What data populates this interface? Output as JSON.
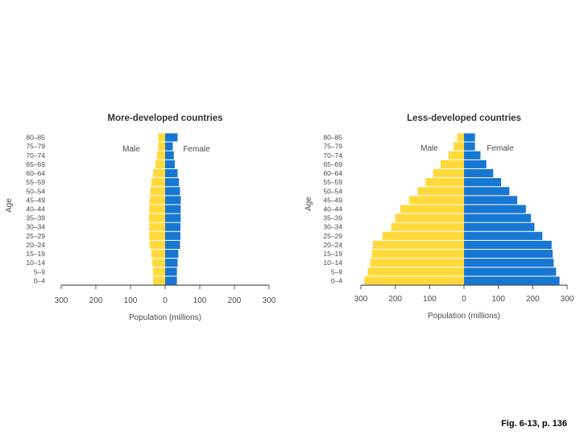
{
  "caption": "Fig. 6-13, p. 136",
  "colors": {
    "male": "#FFD93B",
    "female": "#1877D2",
    "text": "#4a4a4a",
    "axis": "#555555"
  },
  "chart_data": [
    {
      "type": "bar",
      "orientation": "horizontal",
      "layout": "population-pyramid",
      "title": "More-developed countries",
      "xlabel": "Population (millions)",
      "ylabel": "Age",
      "xlim": [
        -300,
        300
      ],
      "xticks": [
        -300,
        -200,
        -100,
        0,
        100,
        200,
        300
      ],
      "xtick_labels": [
        "300",
        "200",
        "100",
        "0",
        "100",
        "200",
        "300"
      ],
      "categories": [
        "0–4",
        "5–9",
        "10–14",
        "15–19",
        "20–24",
        "25–29",
        "30–34",
        "35–39",
        "40–44",
        "45–49",
        "50–54",
        "55–59",
        "60–64",
        "65–69",
        "70–74",
        "75–79",
        "80–85"
      ],
      "series": [
        {
          "name": "Male",
          "values": [
            35,
            35,
            37,
            40,
            45,
            46,
            46,
            47,
            46,
            45,
            43,
            40,
            35,
            28,
            24,
            20,
            20
          ]
        },
        {
          "name": "Female",
          "values": [
            34,
            34,
            36,
            38,
            43,
            44,
            44,
            45,
            45,
            45,
            43,
            40,
            36,
            28,
            25,
            22,
            36
          ]
        }
      ]
    },
    {
      "type": "bar",
      "orientation": "horizontal",
      "layout": "population-pyramid",
      "title": "Less-developed countries",
      "xlabel": "Population (millions)",
      "ylabel": "Age",
      "xlim": [
        -300,
        300
      ],
      "xticks": [
        -300,
        -200,
        -100,
        0,
        100,
        200,
        300
      ],
      "xtick_labels": [
        "300",
        "200",
        "100",
        "0",
        "100",
        "200",
        "300"
      ],
      "categories": [
        "0–4",
        "5–9",
        "10–14",
        "15–19",
        "20–24",
        "25–29",
        "30–34",
        "35–39",
        "40–44",
        "45–49",
        "50–54",
        "55–59",
        "60–64",
        "65–69",
        "70–74",
        "75–79",
        "80–85"
      ],
      "series": [
        {
          "name": "Male",
          "values": [
            290,
            280,
            273,
            268,
            265,
            237,
            212,
            200,
            185,
            160,
            135,
            112,
            90,
            68,
            45,
            30,
            20
          ]
        },
        {
          "name": "Female",
          "values": [
            278,
            268,
            261,
            258,
            255,
            228,
            205,
            195,
            180,
            155,
            132,
            108,
            85,
            65,
            48,
            32,
            32
          ]
        }
      ]
    }
  ]
}
